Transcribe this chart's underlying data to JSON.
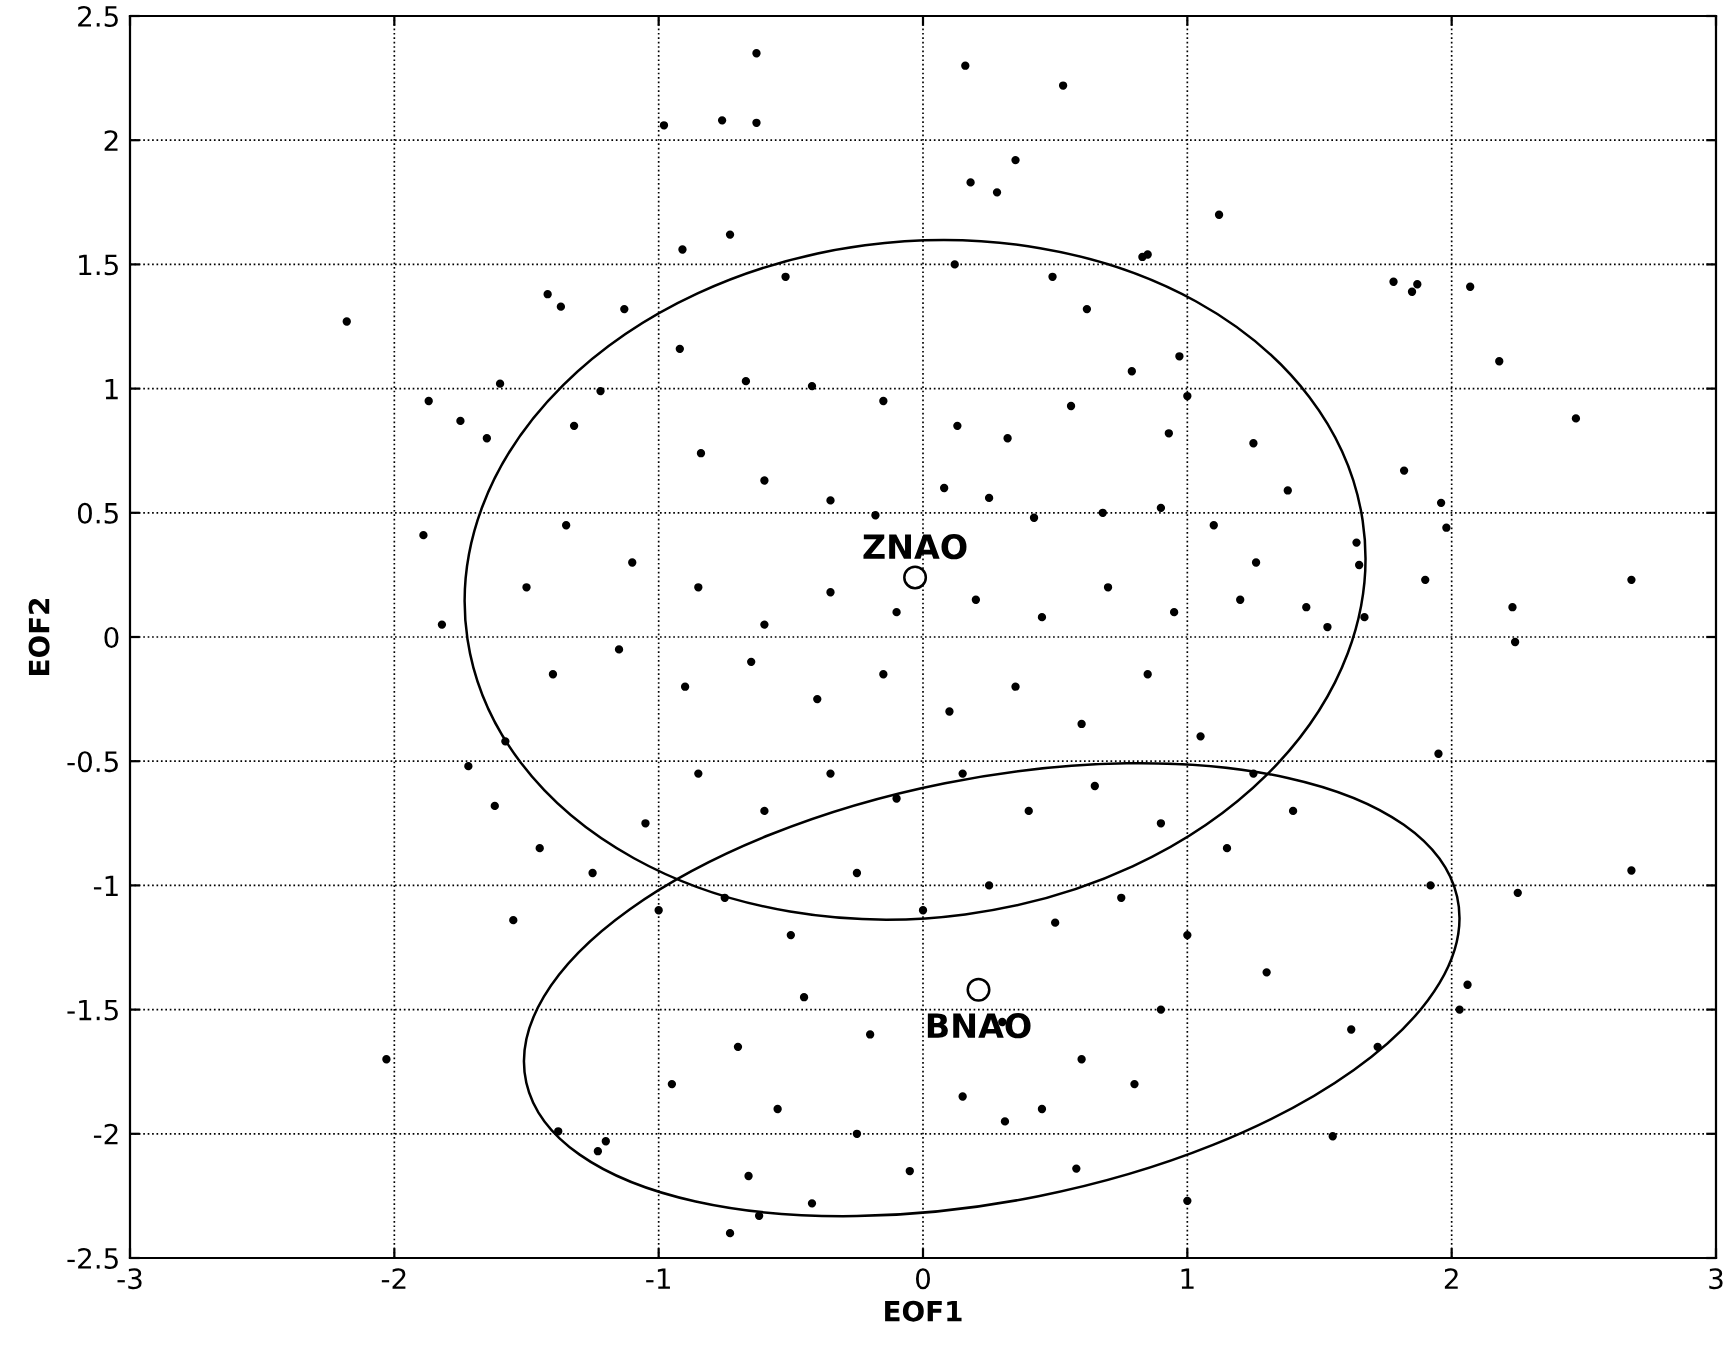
{
  "chart_data": {
    "type": "scatter",
    "xlabel": "EOF1",
    "ylabel": "EOF2",
    "xlim": [
      -3,
      3
    ],
    "ylim": [
      -2.5,
      2.5
    ],
    "xticks": [
      -3,
      -2,
      -1,
      0,
      1,
      2,
      3
    ],
    "yticks": [
      -2.5,
      -2,
      -1.5,
      -1,
      -0.5,
      0,
      0.5,
      1,
      1.5,
      2,
      2.5
    ],
    "grid": true,
    "series": [
      {
        "marker": "circle",
        "color": "#000000",
        "x": [
          -0.63,
          -0.76,
          -0.63,
          -0.98,
          0.16,
          0.53,
          0.35,
          0.28,
          -0.73,
          -0.52,
          0.12,
          0.18,
          1.12,
          -2.18,
          -1.87,
          -1.75,
          -1.6,
          -1.65,
          -1.37,
          -1.42,
          -0.91,
          -1.89,
          -1.82,
          -1.72,
          -1.58,
          -1.62,
          -1.55,
          -2.03,
          -1.38,
          -1.2,
          -1.23,
          -0.73,
          -0.62,
          -0.66,
          -0.42,
          -0.05,
          0.31,
          0.58,
          1.0,
          1.55,
          1.62,
          1.72,
          2.06,
          2.03,
          1.92,
          2.25,
          2.68,
          1.95,
          2.68,
          2.24,
          2.47,
          2.07,
          1.78,
          1.85,
          1.87,
          2.18,
          1.96,
          1.98,
          1.82,
          1.9,
          2.23,
          1.65,
          1.67,
          1.64,
          1.53,
          1.45,
          1.38,
          1.26,
          0.97,
          0.85,
          0.83,
          0.49,
          0.62,
          0.79,
          1.0,
          1.25,
          0.93,
          0.56,
          0.32,
          0.13,
          -0.15,
          -0.42,
          -0.67,
          -0.92,
          -1.13,
          -1.22,
          -1.32,
          -0.84,
          -0.6,
          -0.35,
          -0.18,
          0.08,
          0.25,
          0.42,
          0.68,
          0.9,
          1.1,
          1.2,
          0.95,
          0.7,
          0.45,
          0.2,
          -0.1,
          -0.35,
          -0.6,
          -0.85,
          -1.1,
          -1.35,
          -1.5,
          -1.4,
          -1.15,
          -0.9,
          -0.65,
          -0.4,
          -0.15,
          0.1,
          0.35,
          0.6,
          0.85,
          1.05,
          1.25,
          1.4,
          1.15,
          0.9,
          0.65,
          0.4,
          0.15,
          -0.1,
          -0.35,
          -0.6,
          -0.85,
          -1.05,
          -1.25,
          -1.45,
          -1.0,
          -0.75,
          -0.5,
          -0.25,
          0.0,
          0.25,
          0.5,
          0.75,
          1.0,
          1.3,
          0.9,
          0.6,
          0.3,
          -0.2,
          -0.45,
          -0.7,
          -0.95,
          -0.55,
          -0.25,
          0.15,
          0.45,
          0.8
        ],
        "values": [
          2.35,
          2.08,
          2.07,
          2.06,
          2.3,
          2.22,
          1.92,
          1.79,
          1.62,
          1.45,
          1.5,
          1.83,
          1.7,
          1.27,
          0.95,
          0.87,
          1.02,
          0.8,
          1.33,
          1.38,
          1.56,
          0.41,
          0.05,
          -0.52,
          -0.42,
          -0.68,
          -1.14,
          -1.7,
          -1.99,
          -2.03,
          -2.07,
          -2.4,
          -2.33,
          -2.17,
          -2.28,
          -2.15,
          -1.95,
          -2.14,
          -2.27,
          -2.01,
          -1.58,
          -1.65,
          -1.4,
          -1.5,
          -1.0,
          -1.03,
          -0.94,
          -0.47,
          0.23,
          -0.02,
          0.88,
          1.41,
          1.43,
          1.39,
          1.42,
          1.11,
          0.54,
          0.44,
          0.67,
          0.23,
          0.12,
          0.29,
          0.08,
          0.38,
          0.04,
          0.12,
          0.59,
          0.3,
          1.13,
          1.54,
          1.53,
          1.45,
          1.32,
          1.07,
          0.97,
          0.78,
          0.82,
          0.93,
          0.8,
          0.85,
          0.95,
          1.01,
          1.03,
          1.16,
          1.32,
          0.99,
          0.85,
          0.74,
          0.63,
          0.55,
          0.49,
          0.6,
          0.56,
          0.48,
          0.5,
          0.52,
          0.45,
          0.15,
          0.1,
          0.2,
          0.08,
          0.15,
          0.1,
          0.18,
          0.05,
          0.2,
          0.3,
          0.45,
          0.2,
          -0.15,
          -0.05,
          -0.2,
          -0.1,
          -0.25,
          -0.15,
          -0.3,
          -0.2,
          -0.35,
          -0.15,
          -0.4,
          -0.55,
          -0.7,
          -0.85,
          -0.75,
          -0.6,
          -0.7,
          -0.55,
          -0.65,
          -0.55,
          -0.7,
          -0.55,
          -0.75,
          -0.95,
          -0.85,
          -1.1,
          -1.05,
          -1.2,
          -0.95,
          -1.1,
          -1.0,
          -1.15,
          -1.05,
          -1.2,
          -1.35,
          -1.5,
          -1.7,
          -1.55,
          -1.6,
          -1.45,
          -1.65,
          -1.8,
          -1.9,
          -2.0,
          -1.85,
          -1.9,
          -1.8
        ]
      },
      {
        "marker": "circle",
        "color": "#000000",
        "x": [
          -0.03,
          0.21
        ],
        "values": [
          0.24,
          -1.42
        ]
      }
    ],
    "annotations": [
      {
        "text": "ZNAO",
        "x": -0.03,
        "y": 0.24
      },
      {
        "text": "BNAO",
        "x": 0.21,
        "y": -1.42
      }
    ]
  }
}
